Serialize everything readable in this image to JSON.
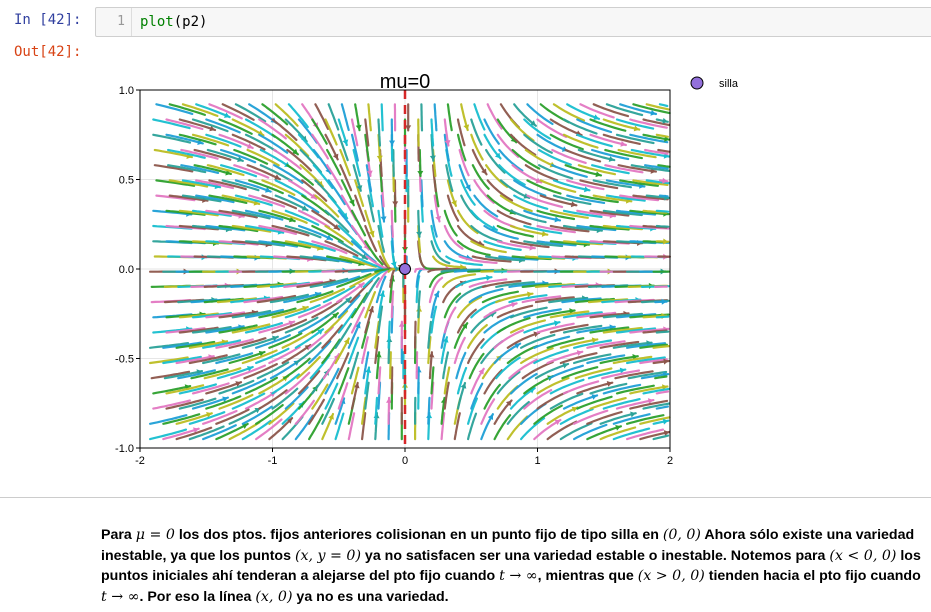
{
  "notebook": {
    "in_prompt": "In [42]:",
    "out_prompt": "Out[42]:",
    "line_number": "1",
    "code_fn": "plot",
    "code_args": "(p2)"
  },
  "chart_data": {
    "type": "streamplot",
    "title": "mu=0",
    "xlim": [
      -2,
      2
    ],
    "ylim": [
      -1,
      1
    ],
    "x_ticks": [
      -2,
      -1,
      0,
      1,
      2
    ],
    "y_ticks": [
      -1.0,
      -0.5,
      0.0,
      0.5,
      1.0
    ],
    "x_tick_labels": [
      "-2",
      "-1",
      "0",
      "1",
      "2"
    ],
    "y_tick_labels": [
      "-1.0",
      "-0.5",
      "0.0",
      "0.5",
      "1.0"
    ],
    "grid": true,
    "vector_field": {
      "dx": "x^2",
      "dy": "-y"
    },
    "nullcline": {
      "x": 0,
      "style": "dashed",
      "color": "#d62728"
    },
    "points": [
      {
        "name": "silla",
        "x": 0,
        "y": 0,
        "color": "#9370db"
      }
    ],
    "legend": {
      "position": "top-right",
      "entries": [
        "silla"
      ]
    },
    "stream_colors": [
      "#17becf",
      "#1f9fd6",
      "#e377c2",
      "#2ca02c",
      "#8c564b",
      "#bcbd22",
      "#2aa198"
    ]
  },
  "markdown": {
    "p_para": "Para ",
    "p_mu0": "μ = 0",
    "p_1": " los dos ptos. fijos anteriores colisionan en un punto fijo de tipo silla en ",
    "p_00": "(0, 0)",
    "p_2": " Ahora sólo existe una variedad inestable, ya que los puntos ",
    "p_xy0": "(x, y = 0)",
    "p_3": " ya no satisfacen ser una variedad estable o inestable. Notemos para ",
    "p_xlt": "(x < 0, 0)",
    "p_4": " los puntos iniciales ahí tenderan a alejarse del pto fijo cuando ",
    "p_tinf1": "t → ∞",
    "p_5": ", mientras que ",
    "p_xgt": "(x > 0, 0)",
    "p_6": " tienden hacia el pto fijo cuando ",
    "p_tinf2": "t → ∞",
    "p_7": ". Por eso la línea ",
    "p_x0": "(x, 0)",
    "p_8": " ya no es una variedad."
  }
}
